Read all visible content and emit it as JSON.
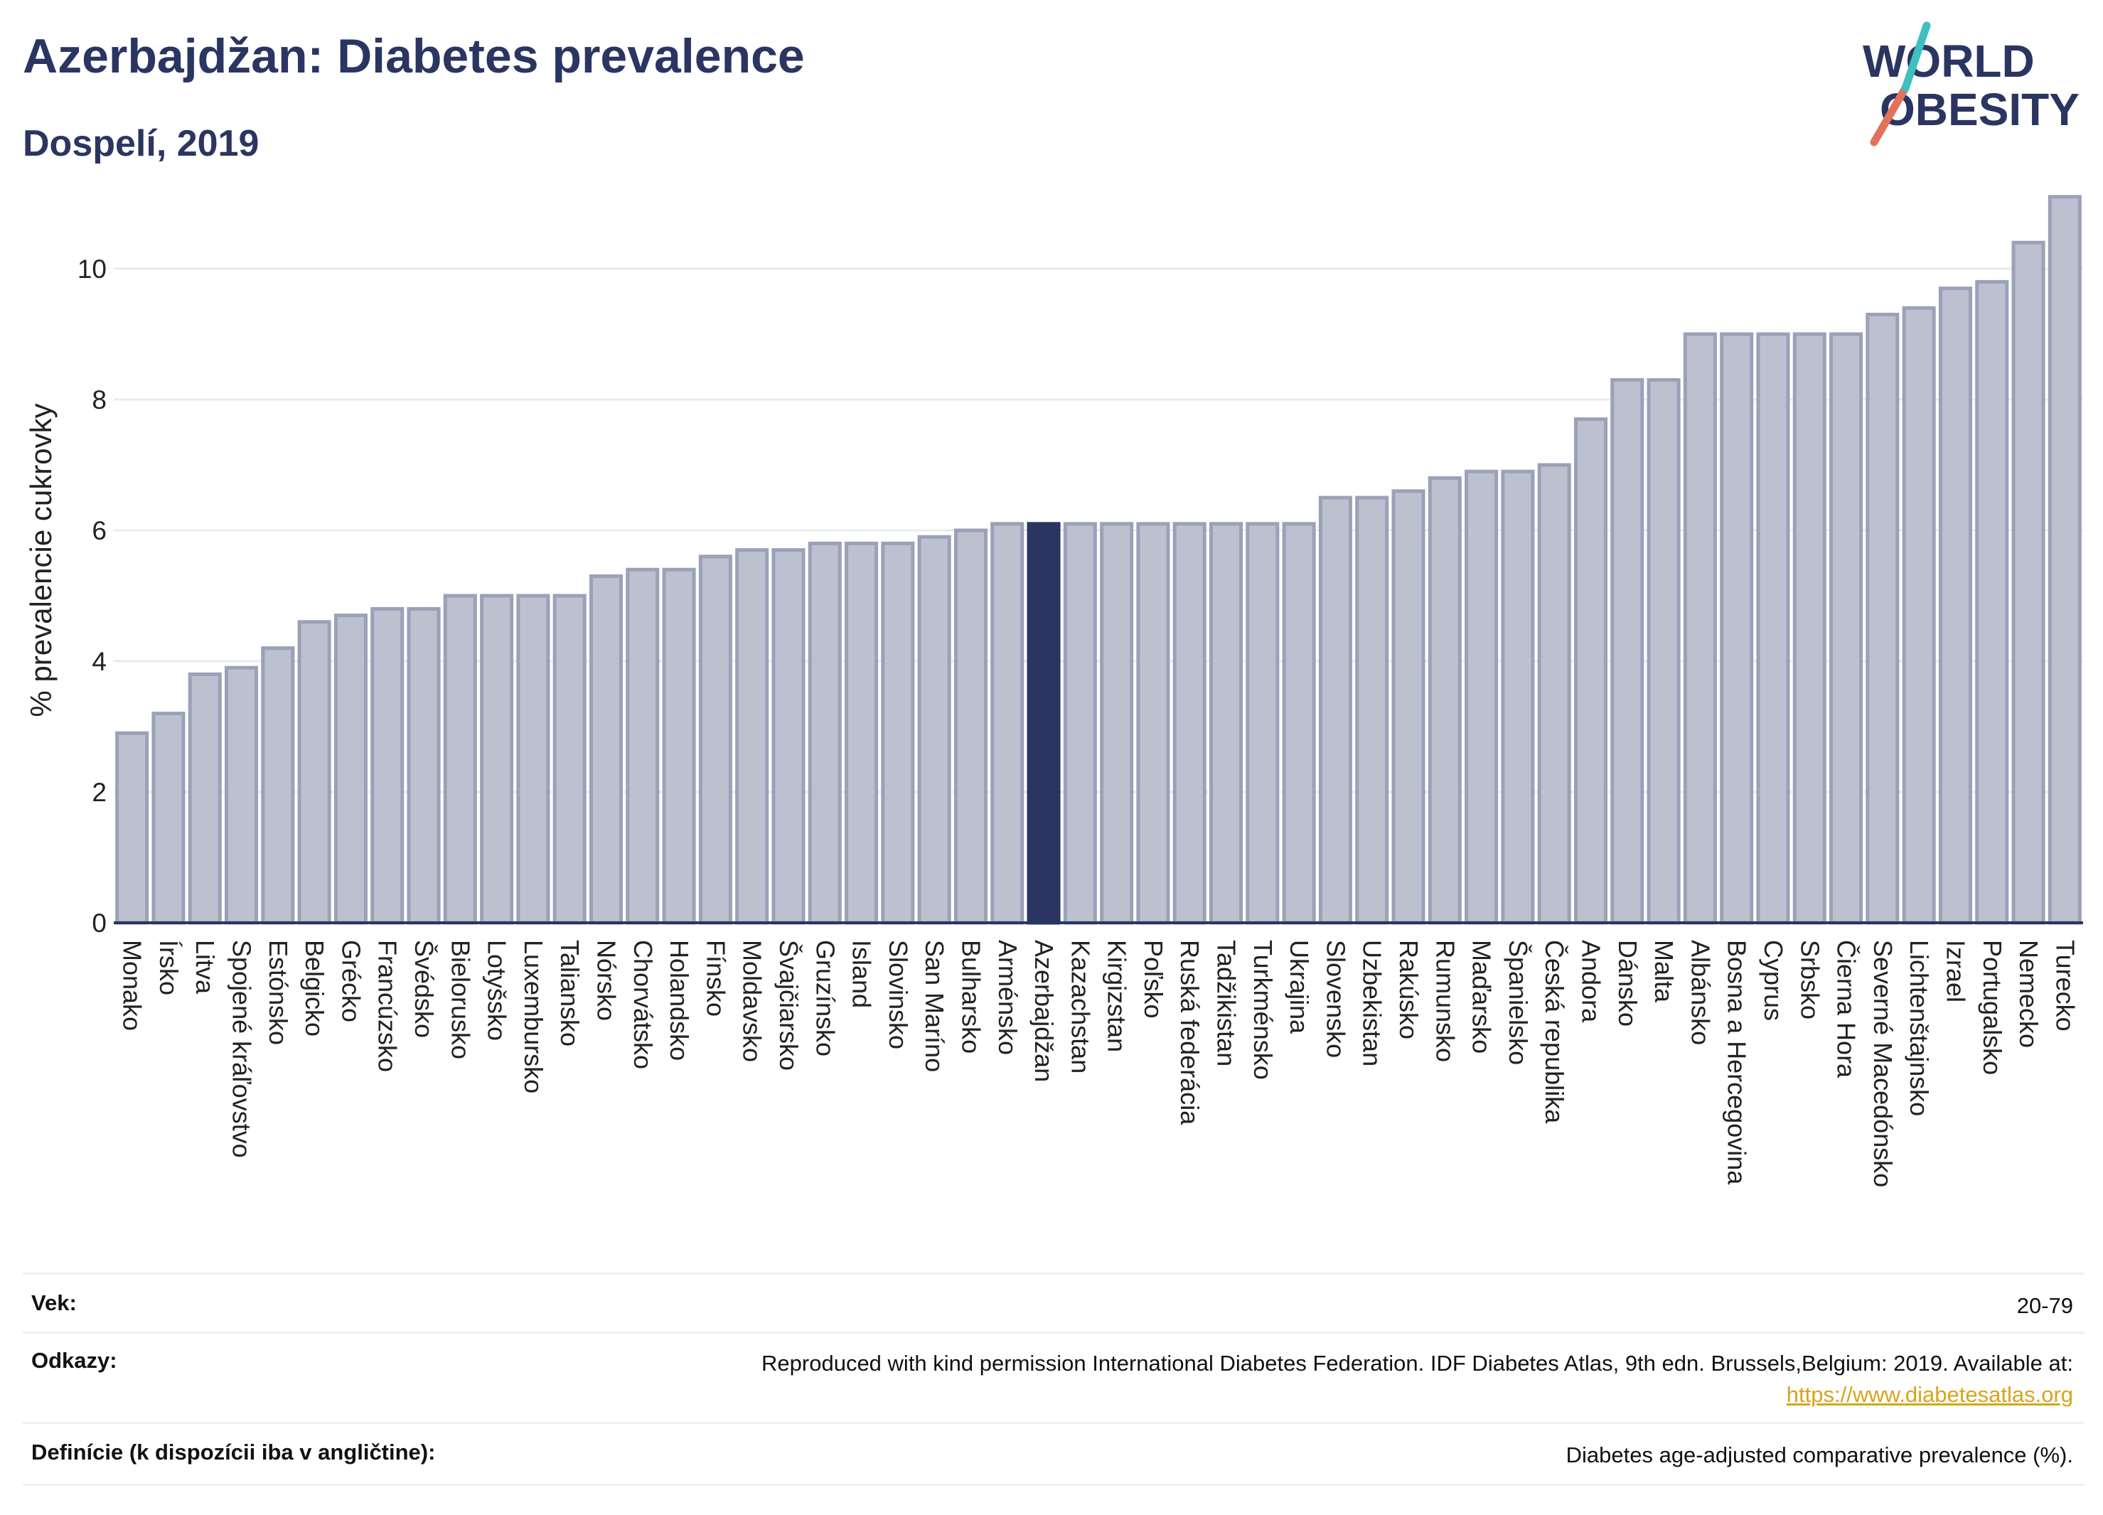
{
  "header": {
    "title": "Azerbajdžan: Diabetes prevalence",
    "subtitle": "Dospelí, 2019"
  },
  "logo": {
    "line1": "WORLD",
    "line2": "OBESITY",
    "text_color": "#2a3561",
    "slash_colors": [
      "#e2725b",
      "#3fbfbf"
    ]
  },
  "chart_data": {
    "type": "bar",
    "ylabel": "% prevalencie cukrovky",
    "xlabel": "",
    "ylim": [
      0,
      11.5
    ],
    "yticks": [
      0,
      2,
      4,
      6,
      8,
      10
    ],
    "grid": true,
    "highlight_category": "Azerbajdžan",
    "bar_color": "#bcc1cf",
    "bar_edge_color": "#9aa1b8",
    "highlight_color": "#2a3561",
    "categories": [
      "Monako",
      "Írsko",
      "Litva",
      "Spojené kráľovstvo",
      "Estónsko",
      "Belgicko",
      "Grécko",
      "Francúzsko",
      "Švédsko",
      "Bielorusko",
      "Lotyšsko",
      "Luxembursko",
      "Taliansko",
      "Nórsko",
      "Chorvátsko",
      "Holandsko",
      "Fínsko",
      "Moldavsko",
      "Švajčiarsko",
      "Gruzínsko",
      "Island",
      "Slovinsko",
      "San Maríno",
      "Bulharsko",
      "Arménsko",
      "Azerbajdžan",
      "Kazachstan",
      "Kirgizstan",
      "Poľsko",
      "Ruská federácia",
      "Tadžikistan",
      "Turkménsko",
      "Ukrajina",
      "Slovensko",
      "Uzbekistan",
      "Rakúsko",
      "Rumunsko",
      "Maďarsko",
      "Španielsko",
      "Česká republika",
      "Andora",
      "Dánsko",
      "Malta",
      "Albánsko",
      "Bosna a Hercegovina",
      "Cyprus",
      "Srbsko",
      "Čierna Hora",
      "Severné Macedónsko",
      "Lichtenštajnsko",
      "Izrael",
      "Portugalsko",
      "Nemecko",
      "Turecko"
    ],
    "values": [
      2.9,
      3.2,
      3.8,
      3.9,
      4.2,
      4.6,
      4.7,
      4.8,
      4.8,
      5.0,
      5.0,
      5.0,
      5.0,
      5.3,
      5.4,
      5.4,
      5.6,
      5.7,
      5.7,
      5.8,
      5.8,
      5.8,
      5.9,
      6.0,
      6.1,
      6.1,
      6.1,
      6.1,
      6.1,
      6.1,
      6.1,
      6.1,
      6.1,
      6.5,
      6.5,
      6.6,
      6.8,
      6.9,
      6.9,
      7.0,
      7.7,
      8.3,
      8.3,
      9.0,
      9.0,
      9.0,
      9.0,
      9.0,
      9.3,
      9.4,
      9.7,
      9.8,
      10.4,
      11.1
    ]
  },
  "info": {
    "age_label": "Vek:",
    "age_value": "20-79",
    "refs_label": "Odkazy:",
    "refs_text": "Reproduced with kind permission International Diabetes Federation. IDF Diabetes Atlas, 9th edn. Brussels,Belgium: 2019. Available at:",
    "refs_link": "https://www.diabetesatlas.org",
    "def_label": "Definície (k dispozícii iba v angličtine):",
    "def_value": "Diabetes age-adjusted comparative prevalence (%)."
  }
}
